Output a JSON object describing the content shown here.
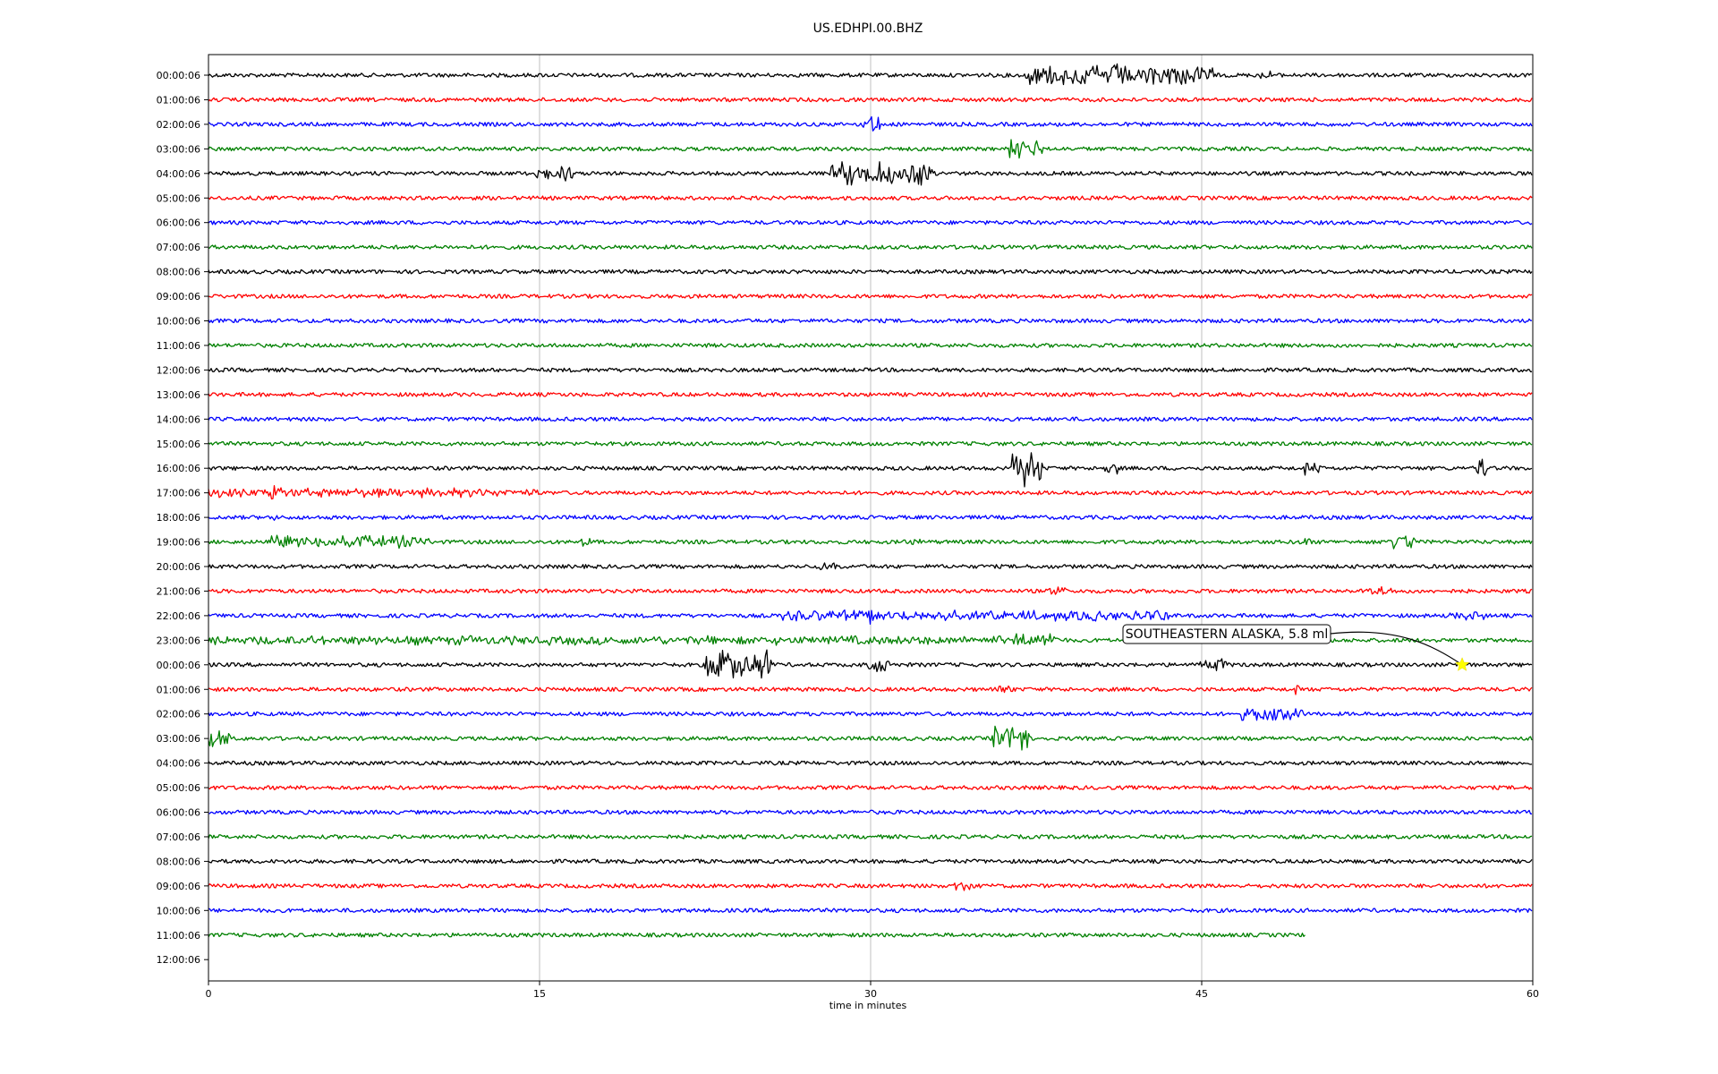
{
  "chart_data": {
    "type": "line",
    "title": "US.EDHPI.00.BHZ",
    "xlabel": "time in minutes",
    "ylabel": "",
    "xlim": [
      0,
      60
    ],
    "x_ticks": [
      "0",
      "15",
      "30",
      "45",
      "60"
    ],
    "grid": "vertical lines at x tick positions",
    "row_labels": [
      "00:00:06",
      "01:00:06",
      "02:00:06",
      "03:00:06",
      "04:00:06",
      "05:00:06",
      "06:00:06",
      "07:00:06",
      "08:00:06",
      "09:00:06",
      "10:00:06",
      "11:00:06",
      "12:00:06",
      "13:00:06",
      "14:00:06",
      "15:00:06",
      "16:00:06",
      "17:00:06",
      "18:00:06",
      "19:00:06",
      "20:00:06",
      "21:00:06",
      "22:00:06",
      "23:00:06",
      "00:00:06",
      "01:00:06",
      "02:00:06",
      "03:00:06",
      "04:00:06",
      "05:00:06",
      "06:00:06",
      "07:00:06",
      "08:00:06",
      "09:00:06",
      "10:00:06",
      "11:00:06",
      "12:00:06"
    ],
    "trace_colors": [
      "#000000",
      "#ff0000",
      "#0000ff",
      "#008000"
    ],
    "last_trace_end_minute": 49.7,
    "bursts": [
      {
        "row": 0,
        "from": 37.0,
        "to": 45.5,
        "amp": 14
      },
      {
        "row": 0,
        "from": 47.5,
        "to": 48.2,
        "amp": 6
      },
      {
        "row": 2,
        "from": 29.5,
        "to": 30.5,
        "amp": 10
      },
      {
        "row": 3,
        "from": 36.2,
        "to": 37.8,
        "amp": 12
      },
      {
        "row": 4,
        "from": 14.4,
        "to": 16.5,
        "amp": 10
      },
      {
        "row": 4,
        "from": 28.2,
        "to": 32.8,
        "amp": 16
      },
      {
        "row": 16,
        "from": 36.4,
        "to": 37.8,
        "amp": 22
      },
      {
        "row": 16,
        "from": 40.5,
        "to": 41.2,
        "amp": 8
      },
      {
        "row": 16,
        "from": 49.5,
        "to": 50.5,
        "amp": 8
      },
      {
        "row": 16,
        "from": 57.3,
        "to": 57.9,
        "amp": 12
      },
      {
        "row": 17,
        "from": 0.0,
        "to": 15.0,
        "amp": 6
      },
      {
        "row": 17,
        "from": 2.8,
        "to": 3.4,
        "amp": 10
      },
      {
        "row": 18,
        "from": 2.7,
        "to": 3.0,
        "amp": 5
      },
      {
        "row": 19,
        "from": 2.8,
        "to": 10.0,
        "amp": 8
      },
      {
        "row": 19,
        "from": 16.8,
        "to": 17.3,
        "amp": 8
      },
      {
        "row": 19,
        "from": 31.5,
        "to": 32.3,
        "amp": 8
      },
      {
        "row": 19,
        "from": 49.5,
        "to": 50.0,
        "amp": 6
      },
      {
        "row": 19,
        "from": 53.5,
        "to": 54.8,
        "amp": 10
      },
      {
        "row": 20,
        "from": 27.5,
        "to": 28.5,
        "amp": 5
      },
      {
        "row": 21,
        "from": 38.0,
        "to": 38.8,
        "amp": 6
      },
      {
        "row": 21,
        "from": 52.5,
        "to": 53.6,
        "amp": 6
      },
      {
        "row": 22,
        "from": 26.0,
        "to": 43.5,
        "amp": 7
      },
      {
        "row": 22,
        "from": 29.9,
        "to": 30.3,
        "amp": 12
      },
      {
        "row": 22,
        "from": 56.2,
        "to": 57.8,
        "amp": 6
      },
      {
        "row": 23,
        "from": 0.0,
        "to": 38.5,
        "amp": 6
      },
      {
        "row": 23,
        "from": 36.5,
        "to": 38.2,
        "amp": 10
      },
      {
        "row": 24,
        "from": 22.5,
        "to": 25.5,
        "amp": 20
      },
      {
        "row": 24,
        "from": 29.9,
        "to": 30.9,
        "amp": 10
      },
      {
        "row": 24,
        "from": 44.9,
        "to": 46.1,
        "amp": 8
      },
      {
        "row": 25,
        "from": 35.8,
        "to": 36.5,
        "amp": 6
      },
      {
        "row": 25,
        "from": 49.0,
        "to": 49.4,
        "amp": 6
      },
      {
        "row": 26,
        "from": 46.8,
        "to": 49.6,
        "amp": 8
      },
      {
        "row": 27,
        "from": 0.0,
        "to": 1.0,
        "amp": 10
      },
      {
        "row": 27,
        "from": 35.5,
        "to": 37.2,
        "amp": 18
      },
      {
        "row": 33,
        "from": 33.8,
        "to": 34.6,
        "amp": 8
      }
    ],
    "annotation": {
      "text": "SOUTHEASTERN ALASKA, 5.8 ml",
      "row": 24,
      "minute": 56.8,
      "marker_color": "#ffff00"
    }
  }
}
